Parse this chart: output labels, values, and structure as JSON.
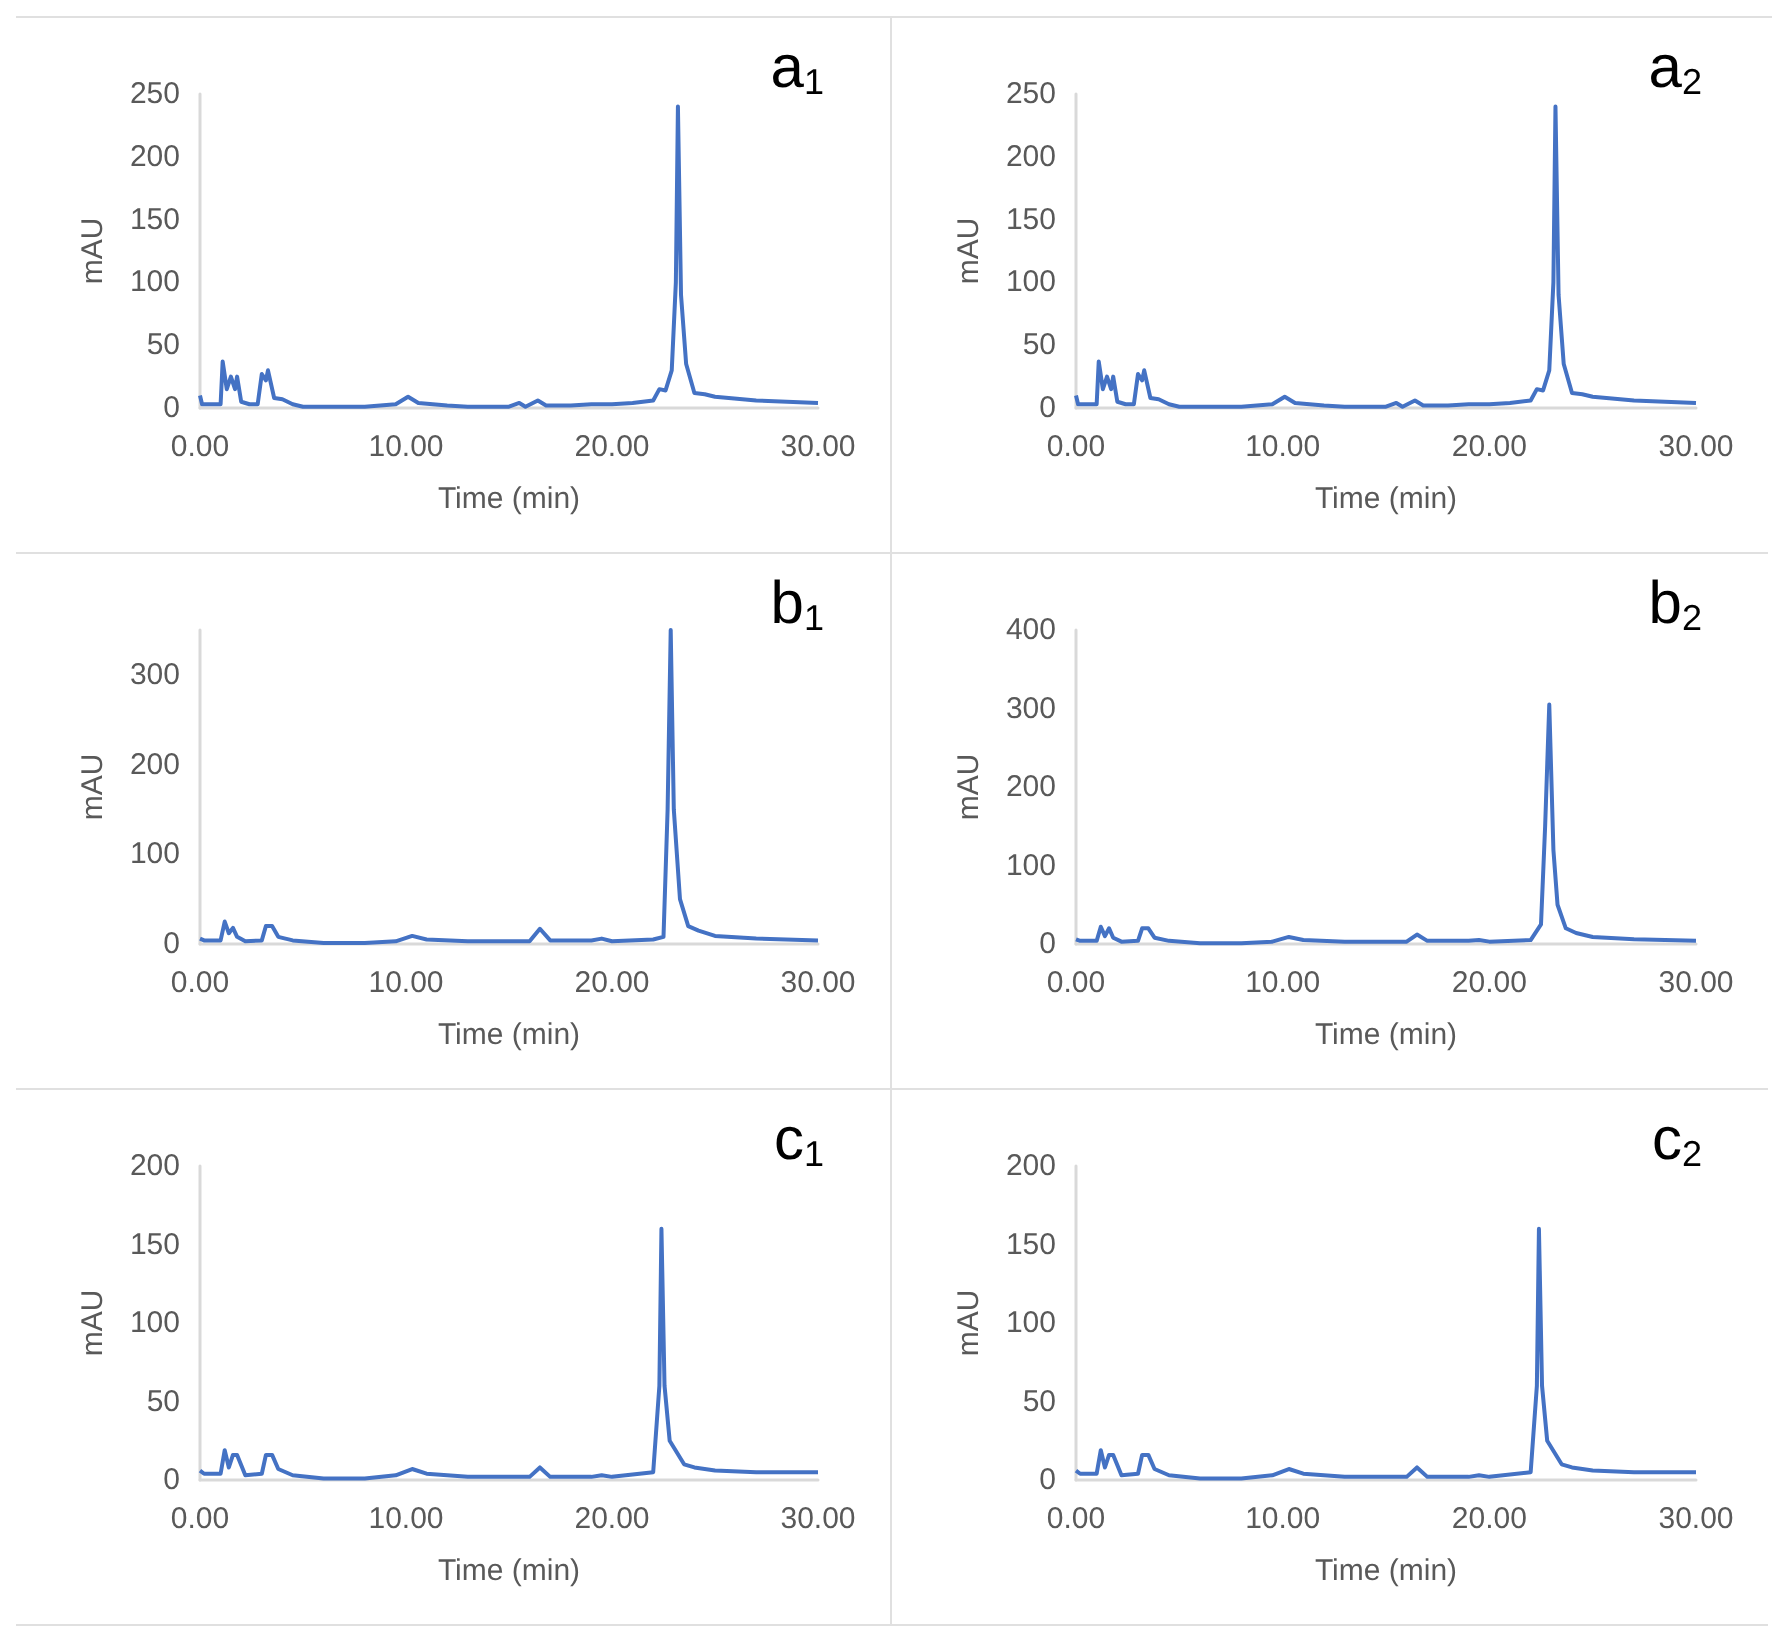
{
  "chart_data": [
    {
      "type": "line",
      "title": "a$_{1}$",
      "xlabel": "Time (min)",
      "ylabel": "mAU",
      "grid": false,
      "marker": "none",
      "xlim": [
        0,
        30
      ],
      "xticks": [
        {
          "value": 0,
          "label": "0.00"
        },
        {
          "value": 10,
          "label": "10.00"
        },
        {
          "value": 20,
          "label": "20.00"
        },
        {
          "value": 30,
          "label": "30.00"
        }
      ],
      "ylim": [
        0,
        250
      ],
      "yticks": [
        0,
        50,
        100,
        150,
        200,
        250
      ],
      "x": [
        0,
        0.1,
        1.0,
        1.1,
        1.3,
        1.5,
        1.7,
        1.8,
        2.0,
        2.4,
        2.8,
        3.0,
        3.2,
        3.3,
        3.6,
        4.0,
        4.5,
        5,
        6,
        8,
        9.5,
        10.1,
        10.6,
        12,
        13,
        15,
        15.5,
        15.8,
        16.4,
        16.8,
        18,
        19,
        20,
        21,
        22,
        22.3,
        22.6,
        22.9,
        23.1,
        23.2,
        23.35,
        23.6,
        24,
        24.5,
        25,
        27,
        30
      ],
      "series": [
        {
          "color": "#4472c4",
          "values": [
            10,
            3,
            3,
            37,
            15,
            25,
            15,
            25,
            5,
            3,
            3,
            27,
            22,
            30,
            8,
            7,
            3,
            1,
            1,
            1,
            3,
            9,
            4,
            2,
            1,
            1,
            4,
            1,
            6,
            2,
            2,
            3,
            3,
            4,
            6,
            15,
            14,
            30,
            100,
            240,
            90,
            35,
            12,
            11,
            9,
            6,
            4
          ]
        }
      ]
    },
    {
      "type": "line",
      "title": "a$_{2}$",
      "xlabel": "Time (min)",
      "ylabel": "mAU",
      "grid": false,
      "marker": "none",
      "xlim": [
        0,
        30
      ],
      "xticks": [
        {
          "value": 0,
          "label": "0.00"
        },
        {
          "value": 10,
          "label": "10.00"
        },
        {
          "value": 20,
          "label": "20.00"
        },
        {
          "value": 30,
          "label": "30.00"
        }
      ],
      "ylim": [
        0,
        250
      ],
      "yticks": [
        0,
        50,
        100,
        150,
        200,
        250
      ],
      "x": [
        0,
        0.1,
        1.0,
        1.1,
        1.3,
        1.5,
        1.7,
        1.8,
        2.0,
        2.4,
        2.8,
        3.0,
        3.2,
        3.3,
        3.6,
        4.0,
        4.5,
        5,
        6,
        8,
        9.5,
        10.1,
        10.6,
        12,
        13,
        15,
        15.5,
        15.8,
        16.4,
        16.8,
        18,
        19,
        20,
        21,
        22,
        22.3,
        22.6,
        22.9,
        23.1,
        23.2,
        23.35,
        23.6,
        24,
        24.5,
        25,
        27,
        30
      ],
      "series": [
        {
          "color": "#4472c4",
          "values": [
            10,
            3,
            3,
            37,
            15,
            25,
            15,
            25,
            5,
            3,
            3,
            27,
            22,
            30,
            8,
            7,
            3,
            1,
            1,
            1,
            3,
            9,
            4,
            2,
            1,
            1,
            4,
            1,
            6,
            2,
            2,
            3,
            3,
            4,
            6,
            15,
            14,
            30,
            100,
            240,
            90,
            35,
            12,
            11,
            9,
            6,
            4
          ]
        }
      ]
    },
    {
      "type": "line",
      "title": "b$_{1}$",
      "xlabel": "Time (min)",
      "ylabel": "mAU",
      "grid": false,
      "marker": "none",
      "xlim": [
        0,
        30
      ],
      "xticks": [
        {
          "value": 0,
          "label": "0.00"
        },
        {
          "value": 10,
          "label": "10.00"
        },
        {
          "value": 20,
          "label": "20.00"
        },
        {
          "value": 30,
          "label": "30.00"
        }
      ],
      "ylim": [
        0,
        350
      ],
      "yticks": [
        0,
        100,
        200,
        300
      ],
      "x": [
        0,
        0.2,
        1.0,
        1.2,
        1.4,
        1.6,
        1.8,
        2.2,
        3.0,
        3.2,
        3.5,
        3.8,
        4.5,
        6,
        8,
        9.5,
        10.3,
        11,
        13,
        16,
        16.5,
        17,
        19,
        19.5,
        20,
        22,
        22.5,
        22.7,
        22.85,
        23.0,
        23.3,
        23.7,
        24.2,
        25,
        27,
        30
      ],
      "series": [
        {
          "color": "#4472c4",
          "values": [
            6,
            4,
            4,
            25,
            12,
            18,
            8,
            3,
            4,
            20,
            20,
            8,
            4,
            1,
            1,
            3,
            9,
            5,
            3,
            3,
            17,
            4,
            4,
            6,
            3,
            5,
            8,
            150,
            350,
            150,
            50,
            20,
            15,
            9,
            6,
            4
          ]
        }
      ]
    },
    {
      "type": "line",
      "title": "b$_{2}$",
      "xlabel": "Time (min)",
      "ylabel": "mAU",
      "grid": false,
      "marker": "none",
      "xlim": [
        0,
        30
      ],
      "xticks": [
        {
          "value": 0,
          "label": "0.00"
        },
        {
          "value": 10,
          "label": "10.00"
        },
        {
          "value": 20,
          "label": "20.00"
        },
        {
          "value": 30,
          "label": "30.00"
        }
      ],
      "ylim": [
        0,
        400
      ],
      "yticks": [
        0,
        100,
        200,
        300,
        400
      ],
      "x": [
        0,
        0.2,
        1.0,
        1.2,
        1.4,
        1.6,
        1.8,
        2.2,
        3.0,
        3.2,
        3.5,
        3.8,
        4.5,
        6,
        8,
        9.5,
        10.3,
        11,
        13,
        16,
        16.5,
        17,
        19,
        19.5,
        20,
        22,
        22.5,
        22.7,
        22.9,
        23.1,
        23.3,
        23.7,
        24.2,
        25,
        27,
        30
      ],
      "series": [
        {
          "color": "#4472c4",
          "values": [
            6,
            4,
            4,
            22,
            10,
            20,
            8,
            3,
            4,
            20,
            20,
            8,
            4,
            1,
            1,
            3,
            9,
            5,
            3,
            3,
            12,
            4,
            4,
            5,
            3,
            5,
            25,
            150,
            305,
            120,
            50,
            20,
            14,
            9,
            6,
            4
          ]
        }
      ]
    },
    {
      "type": "line",
      "title": "c$_{1}$",
      "xlabel": "Time (min)",
      "ylabel": "mAU",
      "grid": false,
      "marker": "none",
      "xlim": [
        0,
        30
      ],
      "xticks": [
        {
          "value": 0,
          "label": "0.00"
        },
        {
          "value": 10,
          "label": "10.00"
        },
        {
          "value": 20,
          "label": "20.00"
        },
        {
          "value": 30,
          "label": "30.00"
        }
      ],
      "ylim": [
        0,
        200
      ],
      "yticks": [
        0,
        50,
        100,
        150,
        200
      ],
      "x": [
        0,
        0.2,
        1.0,
        1.2,
        1.4,
        1.6,
        1.8,
        2.2,
        3.0,
        3.2,
        3.5,
        3.8,
        4.5,
        6,
        8,
        9.5,
        10.3,
        11,
        13,
        16,
        16.5,
        17,
        19,
        19.5,
        20,
        22,
        22.3,
        22.4,
        22.55,
        22.8,
        23.5,
        24,
        25,
        27,
        30
      ],
      "series": [
        {
          "color": "#4472c4",
          "values": [
            6,
            4,
            4,
            19,
            8,
            16,
            16,
            3,
            4,
            16,
            16,
            7,
            3,
            1,
            1,
            3,
            7,
            4,
            2,
            2,
            8,
            2,
            2,
            3,
            2,
            5,
            60,
            160,
            60,
            25,
            10,
            8,
            6,
            5,
            5
          ]
        }
      ]
    },
    {
      "type": "line",
      "title": "c$_{2}$",
      "xlabel": "Time (min)",
      "ylabel": "mAU",
      "grid": false,
      "marker": "none",
      "xlim": [
        0,
        30
      ],
      "xticks": [
        {
          "value": 0,
          "label": "0.00"
        },
        {
          "value": 10,
          "label": "10.00"
        },
        {
          "value": 20,
          "label": "20.00"
        },
        {
          "value": 30,
          "label": "30.00"
        }
      ],
      "ylim": [
        0,
        200
      ],
      "yticks": [
        0,
        50,
        100,
        150,
        200
      ],
      "x": [
        0,
        0.2,
        1.0,
        1.2,
        1.4,
        1.6,
        1.8,
        2.2,
        3.0,
        3.2,
        3.5,
        3.8,
        4.5,
        6,
        8,
        9.5,
        10.3,
        11,
        13,
        16,
        16.5,
        17,
        19,
        19.5,
        20,
        22,
        22.3,
        22.4,
        22.55,
        22.8,
        23.5,
        24,
        25,
        27,
        30
      ],
      "series": [
        {
          "color": "#4472c4",
          "values": [
            6,
            4,
            4,
            19,
            8,
            16,
            16,
            3,
            4,
            16,
            16,
            7,
            3,
            1,
            1,
            3,
            7,
            4,
            2,
            2,
            8,
            2,
            2,
            3,
            2,
            5,
            60,
            160,
            60,
            25,
            10,
            8,
            6,
            5,
            5
          ]
        }
      ]
    }
  ]
}
